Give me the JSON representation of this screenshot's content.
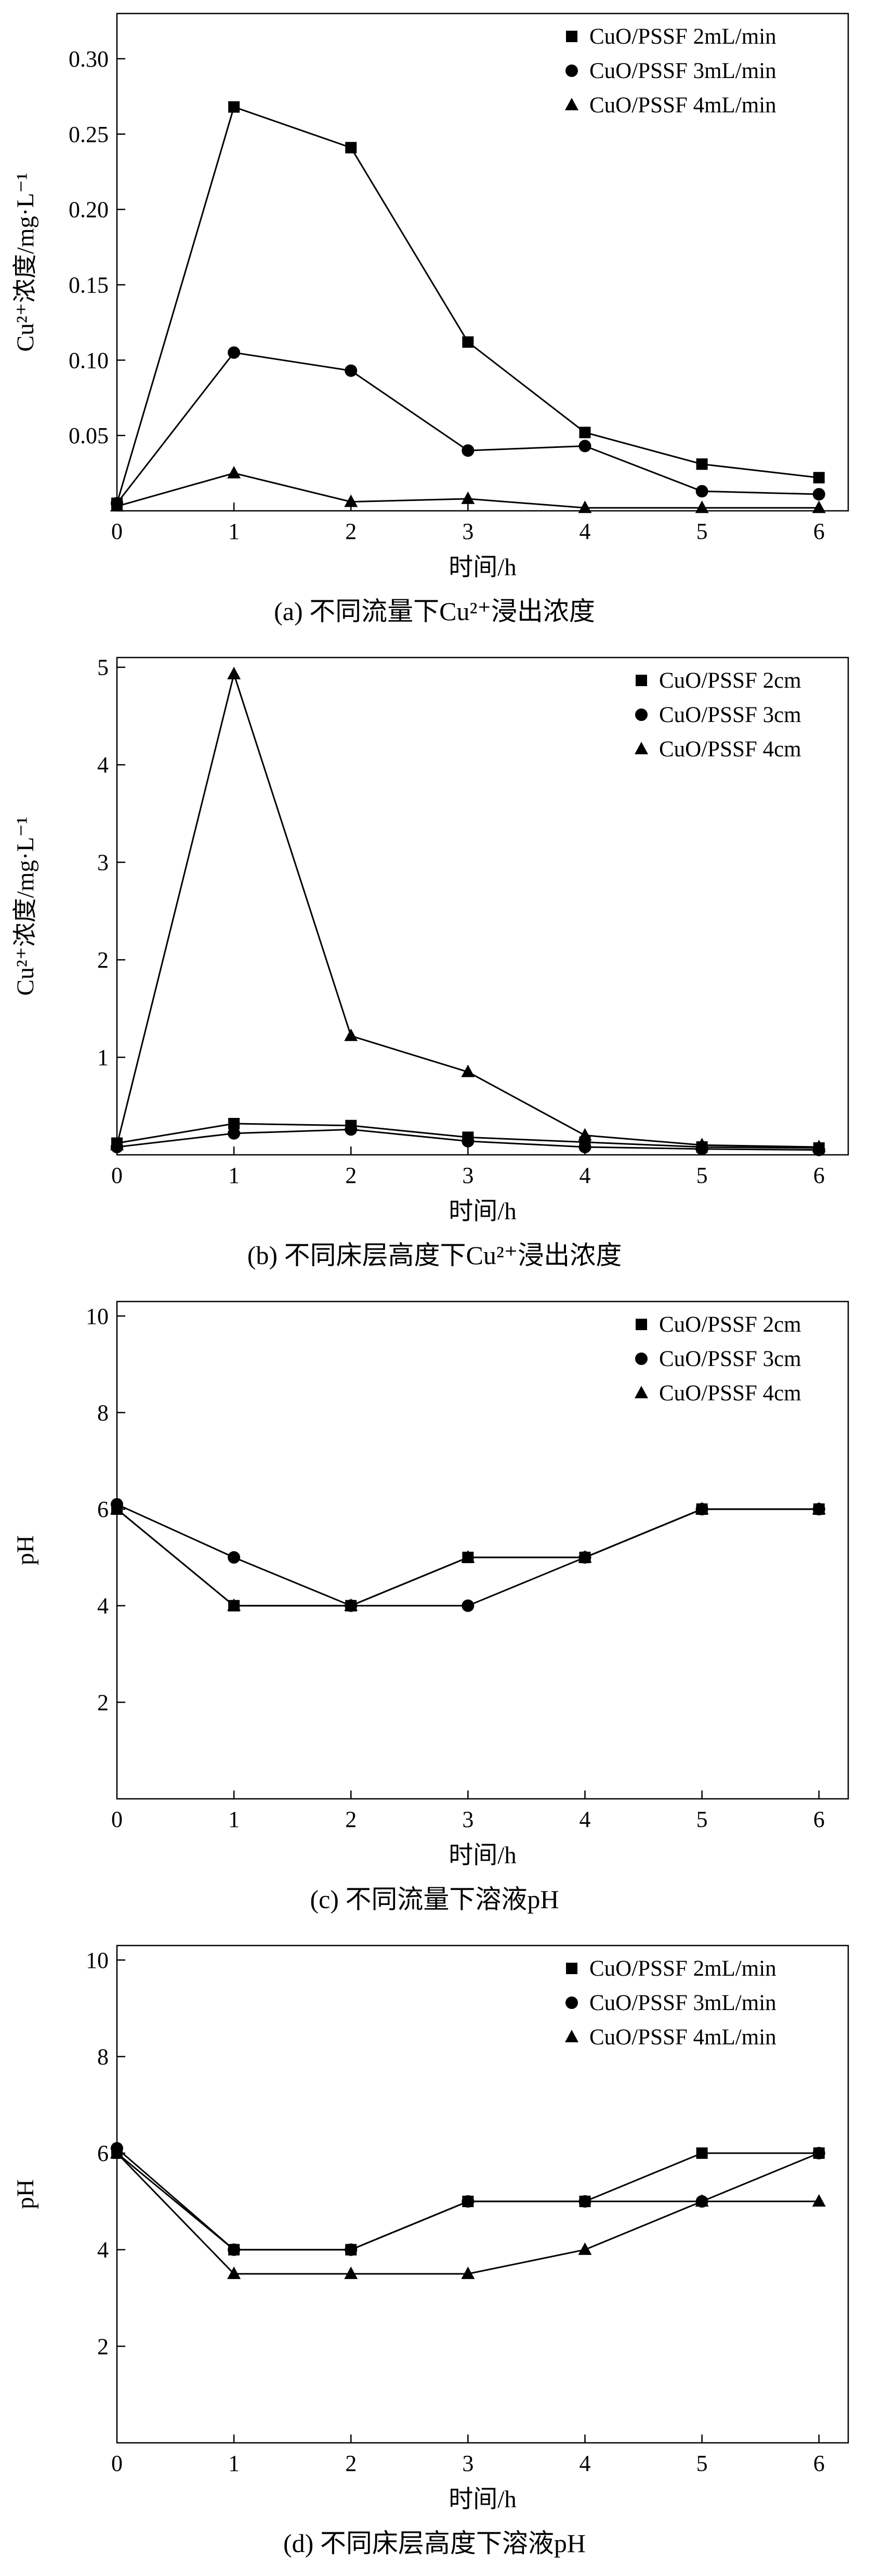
{
  "page": {
    "background": "#ffffff",
    "ink_color": "#000000"
  },
  "chart_data": [
    {
      "id": "a",
      "type": "line",
      "caption": "(a) 不同流量下Cu²⁺浸出浓度",
      "xlabel": "时间/h",
      "ylabel": "Cu²⁺浓度/mg·L⁻¹",
      "x": [
        0,
        1,
        2,
        3,
        4,
        5,
        6
      ],
      "xlim": [
        0,
        6.25
      ],
      "ylim": [
        0,
        0.33
      ],
      "xticks": [
        0,
        1,
        2,
        3,
        4,
        5,
        6
      ],
      "xtick_labels": [
        "0",
        "1",
        "2",
        "3",
        "4",
        "5",
        "6"
      ],
      "yticks": [
        0.05,
        0.1,
        0.15,
        0.2,
        0.25,
        0.3
      ],
      "ytick_labels": [
        "0.05",
        "0.10",
        "0.15",
        "0.20",
        "0.25",
        "0.30"
      ],
      "grid": false,
      "legend": {
        "position": "top-right",
        "marker_x": 1100
      },
      "series": [
        {
          "name": "CuO/PSSF 2mL/min",
          "marker": "square",
          "values": [
            0.005,
            0.268,
            0.241,
            0.112,
            0.052,
            0.031,
            0.022
          ]
        },
        {
          "name": "CuO/PSSF 3mL/min",
          "marker": "circle",
          "values": [
            0.005,
            0.105,
            0.093,
            0.04,
            0.043,
            0.013,
            0.011
          ]
        },
        {
          "name": "CuO/PSSF 4mL/min",
          "marker": "triangle",
          "values": [
            0.003,
            0.025,
            0.006,
            0.008,
            0.002,
            0.002,
            0.002
          ]
        }
      ]
    },
    {
      "id": "b",
      "type": "line",
      "caption": "(b) 不同床层高度下Cu²⁺浸出浓度",
      "xlabel": "时间/h",
      "ylabel": "Cu²⁺浓度/mg·L⁻¹",
      "x": [
        0,
        1,
        2,
        3,
        4,
        5,
        6
      ],
      "xlim": [
        0,
        6.25
      ],
      "ylim": [
        0,
        5.1
      ],
      "xticks": [
        0,
        1,
        2,
        3,
        4,
        5,
        6
      ],
      "xtick_labels": [
        "0",
        "1",
        "2",
        "3",
        "4",
        "5",
        "6"
      ],
      "yticks": [
        1,
        2,
        3,
        4,
        5
      ],
      "ytick_labels": [
        "1",
        "2",
        "3",
        "4",
        "5"
      ],
      "grid": false,
      "legend": {
        "position": "top-right",
        "marker_x": 1234
      },
      "series": [
        {
          "name": "CuO/PSSF 2cm",
          "marker": "square",
          "values": [
            0.12,
            0.32,
            0.3,
            0.18,
            0.13,
            0.08,
            0.07
          ]
        },
        {
          "name": "CuO/PSSF 3cm",
          "marker": "circle",
          "values": [
            0.08,
            0.22,
            0.26,
            0.14,
            0.08,
            0.06,
            0.05
          ]
        },
        {
          "name": "CuO/PSSF 4cm",
          "marker": "triangle",
          "values": [
            0.1,
            4.93,
            1.22,
            0.85,
            0.2,
            0.1,
            0.08
          ]
        }
      ]
    },
    {
      "id": "c",
      "type": "line",
      "caption": "(c) 不同流量下溶液pH",
      "xlabel": "时间/h",
      "ylabel": "pH",
      "x": [
        0,
        1,
        2,
        3,
        4,
        5,
        6
      ],
      "xlim": [
        0,
        6.25
      ],
      "ylim": [
        0,
        10.3
      ],
      "xticks": [
        0,
        1,
        2,
        3,
        4,
        5,
        6
      ],
      "xtick_labels": [
        "0",
        "1",
        "2",
        "3",
        "4",
        "5",
        "6"
      ],
      "yticks": [
        2,
        4,
        6,
        8,
        10
      ],
      "ytick_labels": [
        "2",
        "4",
        "6",
        "8",
        "10"
      ],
      "grid": false,
      "legend": {
        "position": "top-right",
        "marker_x": 1234
      },
      "series": [
        {
          "name": "CuO/PSSF 2cm",
          "marker": "square",
          "values": [
            6.0,
            4.0,
            4.0,
            5.0,
            5.0,
            6.0,
            6.0
          ]
        },
        {
          "name": "CuO/PSSF 3cm",
          "marker": "circle",
          "values": [
            6.1,
            5.0,
            4.0,
            4.0,
            5.0,
            6.0,
            6.0
          ]
        },
        {
          "name": "CuO/PSSF 4cm",
          "marker": "triangle",
          "values": [
            6.0,
            4.0,
            4.0,
            5.0,
            5.0,
            6.0,
            6.0
          ]
        }
      ]
    },
    {
      "id": "d",
      "type": "line",
      "caption": "(d) 不同床层高度下溶液pH",
      "xlabel": "时间/h",
      "ylabel": "pH",
      "x": [
        0,
        1,
        2,
        3,
        4,
        5,
        6
      ],
      "xlim": [
        0,
        6.25
      ],
      "ylim": [
        0,
        10.3
      ],
      "xticks": [
        0,
        1,
        2,
        3,
        4,
        5,
        6
      ],
      "xtick_labels": [
        "0",
        "1",
        "2",
        "3",
        "4",
        "5",
        "6"
      ],
      "yticks": [
        2,
        4,
        6,
        8,
        10
      ],
      "ytick_labels": [
        "2",
        "4",
        "6",
        "8",
        "10"
      ],
      "grid": false,
      "legend": {
        "position": "top-right",
        "marker_x": 1100
      },
      "series": [
        {
          "name": "CuO/PSSF 2mL/min",
          "marker": "square",
          "values": [
            6.0,
            4.0,
            4.0,
            5.0,
            5.0,
            6.0,
            6.0
          ]
        },
        {
          "name": "CuO/PSSF 3mL/min",
          "marker": "circle",
          "values": [
            6.1,
            4.0,
            4.0,
            5.0,
            5.0,
            5.0,
            6.0
          ]
        },
        {
          "name": "CuO/PSSF 4mL/min",
          "marker": "triangle",
          "values": [
            6.0,
            3.5,
            3.5,
            3.5,
            4.0,
            5.0,
            5.0
          ]
        }
      ]
    }
  ]
}
